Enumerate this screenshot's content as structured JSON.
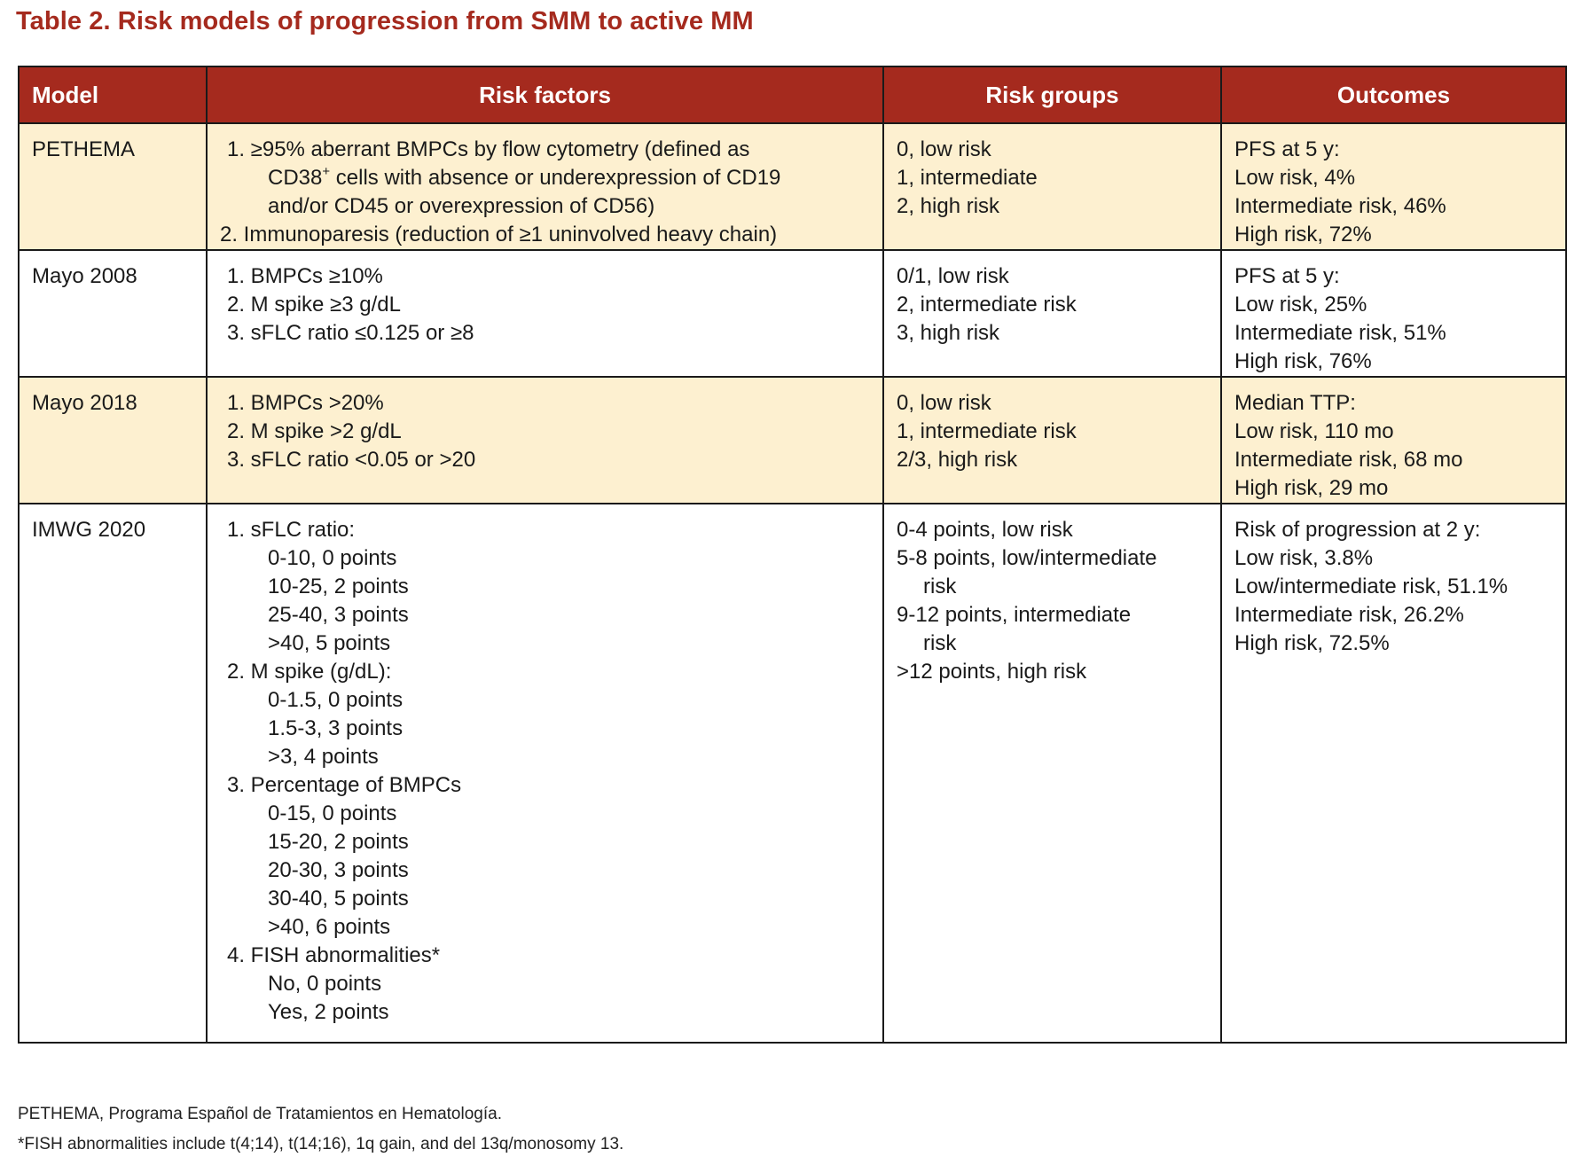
{
  "title": "Table 2. Risk models of progression from SMM to active MM",
  "headers": {
    "model": "Model",
    "factors": "Risk factors",
    "groups": "Risk groups",
    "outcomes": "Outcomes"
  },
  "rows": [
    {
      "model": "PETHEMA",
      "factors": [
        "1. ≥95% aberrant BMPCs by flow cytometry (defined as",
        "CD38",
        "+",
        " cells with absence or underexpression of CD19",
        "and/or CD45 or overexpression of CD56)",
        "2. Immunoparesis (reduction of ≥1 uninvolved heavy chain)"
      ],
      "groups": [
        "0, low risk",
        "1, intermediate",
        "2, high risk"
      ],
      "outcomes": [
        "PFS at 5 y:",
        "Low risk, 4%",
        "Intermediate risk, 46%",
        "High risk, 72%"
      ]
    },
    {
      "model": "Mayo 2008",
      "factors": [
        "1. BMPCs ≥10%",
        "2. M spike ≥3 g/dL",
        "3. sFLC ratio ≤0.125 or ≥8"
      ],
      "groups": [
        "0/1, low risk",
        "2, intermediate risk",
        "3, high risk"
      ],
      "outcomes": [
        "PFS at 5 y:",
        "Low risk, 25%",
        "Intermediate risk, 51%",
        "High risk, 76%"
      ]
    },
    {
      "model": "Mayo 2018",
      "factors": [
        "1. BMPCs >20%",
        "2. M spike >2 g/dL",
        "3. sFLC ratio <0.05 or >20"
      ],
      "groups": [
        "0, low risk",
        "1, intermediate risk",
        "2/3, high risk"
      ],
      "outcomes": [
        "Median TTP:",
        "Low risk, 110 mo",
        "Intermediate risk, 68 mo",
        "High risk, 29 mo"
      ]
    },
    {
      "model": "IMWG 2020",
      "factors": [
        "1. sFLC ratio:",
        "0-10, 0 points",
        "10-25, 2 points",
        "25-40, 3 points",
        ">40, 5 points",
        "2. M spike (g/dL):",
        "0-1.5, 0 points",
        "1.5-3, 3 points",
        ">3, 4 points",
        "3. Percentage of BMPCs",
        "0-15, 0 points",
        "15-20, 2 points",
        "20-30, 3 points",
        "30-40, 5 points",
        ">40, 6 points",
        "4. FISH abnormalities*",
        "No, 0 points",
        "Yes, 2 points"
      ],
      "groups": [
        "0-4 points, low risk",
        "5-8 points, low/intermediate",
        "risk",
        "9-12 points, intermediate",
        "risk",
        ">12 points, high risk"
      ],
      "outcomes": [
        "Risk of progression at 2 y:",
        "Low risk, 3.8%",
        "Low/intermediate risk, 51.1%",
        "Intermediate risk, 26.2%",
        "High risk, 72.5%"
      ]
    }
  ],
  "footnotes": [
    "PETHEMA, Programa Español de Tratamientos en Hematología.",
    "*FISH abnormalities include t(4;14), t(14;16), 1q gain, and del 13q/monosomy 13."
  ],
  "colors": {
    "header_bg": "#a52a1e",
    "title_color": "#a52a1e",
    "shaded_row": "#fdf0d0",
    "border": "#1a1a1a"
  }
}
